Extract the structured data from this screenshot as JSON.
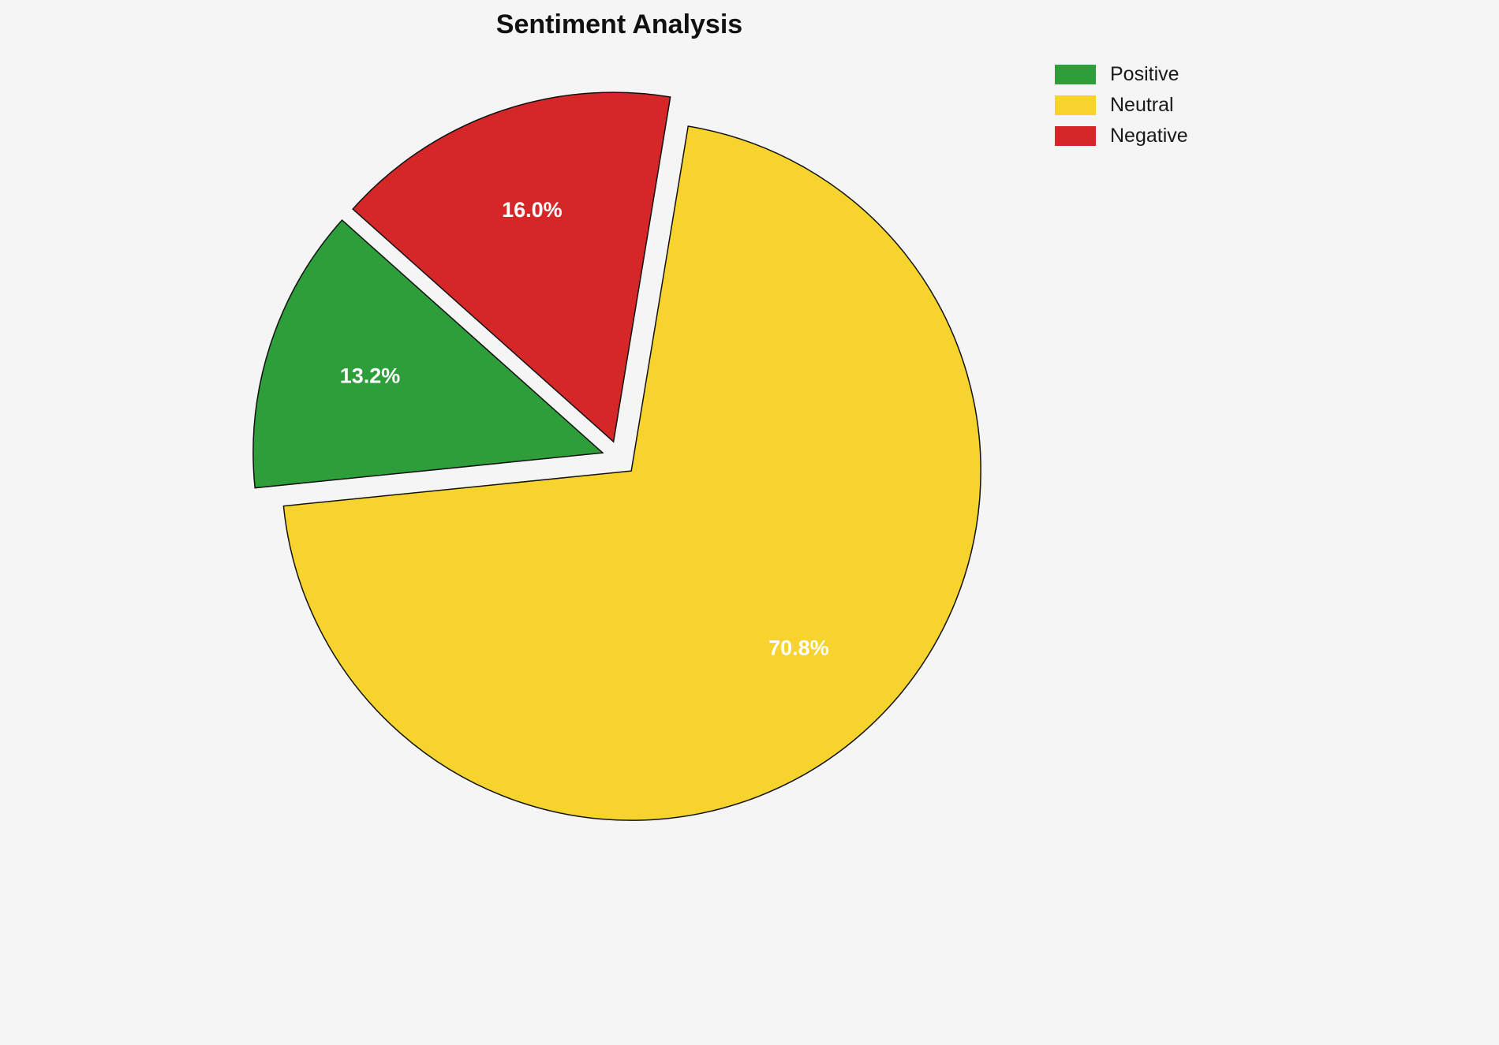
{
  "title": "Sentiment Analysis",
  "legend": {
    "items": [
      {
        "label": "Positive",
        "color": "#2e9e3a"
      },
      {
        "label": "Neutral",
        "color": "#f6d32d"
      },
      {
        "label": "Negative",
        "color": "#d62728"
      }
    ]
  },
  "chart_data": {
    "type": "pie",
    "title": "Sentiment Analysis",
    "labels": [
      "Positive",
      "Neutral",
      "Negative"
    ],
    "values": [
      13.2,
      70.8,
      16.0
    ],
    "pct_labels": [
      "13.2%",
      "70.8%",
      "16.0%"
    ],
    "colors": [
      "#2e9e3a",
      "#f6d32d",
      "#d62728"
    ],
    "start_angle_deg": 138.24,
    "counterclockwise": true,
    "explode": 0.05,
    "label_radius_frac": 0.7,
    "edge_color": "#111111",
    "legend_position": "upper right",
    "background": "#f5f5f5"
  }
}
